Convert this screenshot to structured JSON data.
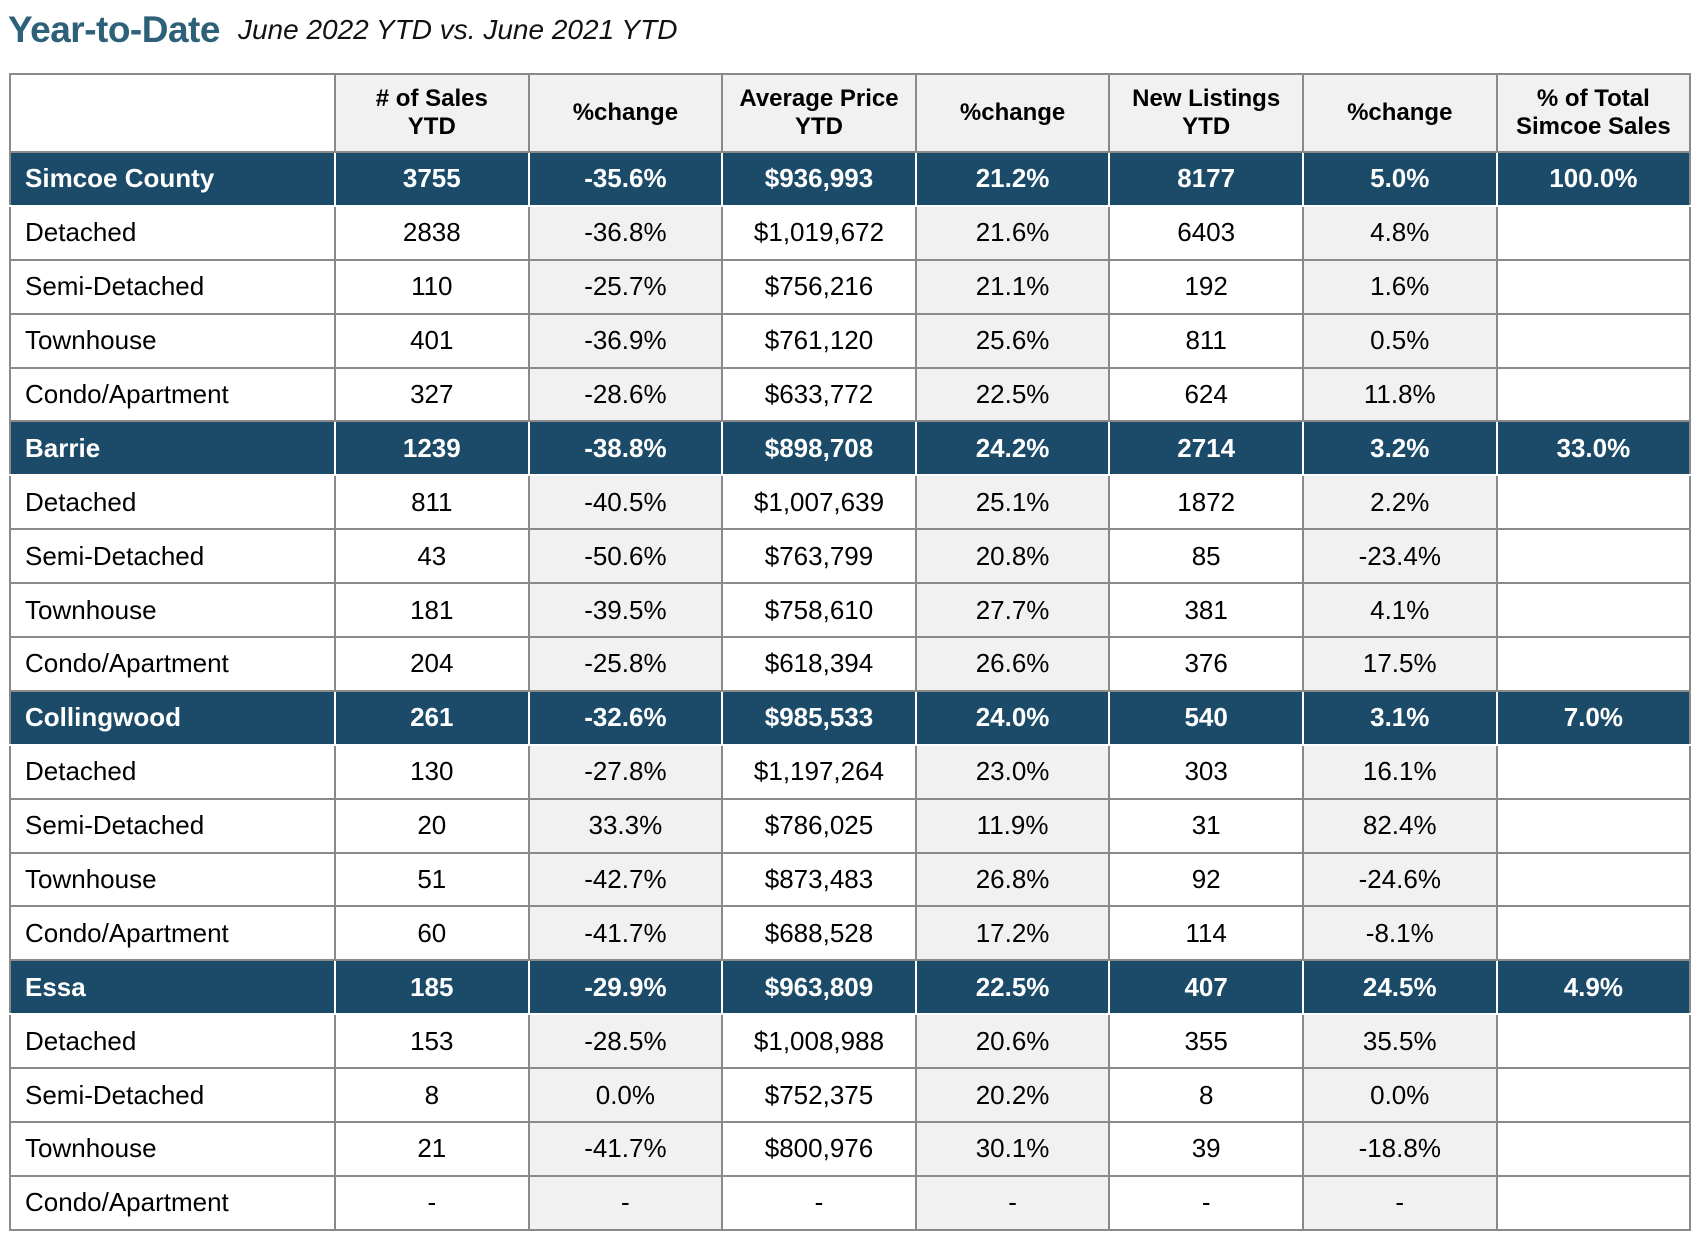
{
  "title": {
    "main": "Year-to-Date",
    "subtitle": "June 2022 YTD vs. June 2021 YTD"
  },
  "table": {
    "headers": [
      "",
      "# of Sales\nYTD",
      "%change",
      "Average Price\nYTD",
      "%change",
      "New Listings\nYTD",
      "%change",
      "% of Total\nSimcoe Sales"
    ],
    "groups": [
      {
        "summary": [
          "Simcoe County",
          "3755",
          "-35.6%",
          "$936,993",
          "21.2%",
          "8177",
          "5.0%",
          "100.0%"
        ],
        "rows": [
          [
            "Detached",
            "2838",
            "-36.8%",
            "$1,019,672",
            "21.6%",
            "6403",
            "4.8%",
            ""
          ],
          [
            "Semi-Detached",
            "110",
            "-25.7%",
            "$756,216",
            "21.1%",
            "192",
            "1.6%",
            ""
          ],
          [
            "Townhouse",
            "401",
            "-36.9%",
            "$761,120",
            "25.6%",
            "811",
            "0.5%",
            ""
          ],
          [
            "Condo/Apartment",
            "327",
            "-28.6%",
            "$633,772",
            "22.5%",
            "624",
            "11.8%",
            ""
          ]
        ]
      },
      {
        "summary": [
          "Barrie",
          "1239",
          "-38.8%",
          "$898,708",
          "24.2%",
          "2714",
          "3.2%",
          "33.0%"
        ],
        "rows": [
          [
            "Detached",
            "811",
            "-40.5%",
            "$1,007,639",
            "25.1%",
            "1872",
            "2.2%",
            ""
          ],
          [
            "Semi-Detached",
            "43",
            "-50.6%",
            "$763,799",
            "20.8%",
            "85",
            "-23.4%",
            ""
          ],
          [
            "Townhouse",
            "181",
            "-39.5%",
            "$758,610",
            "27.7%",
            "381",
            "4.1%",
            ""
          ],
          [
            "Condo/Apartment",
            "204",
            "-25.8%",
            "$618,394",
            "26.6%",
            "376",
            "17.5%",
            ""
          ]
        ]
      },
      {
        "summary": [
          "Collingwood",
          "261",
          "-32.6%",
          "$985,533",
          "24.0%",
          "540",
          "3.1%",
          "7.0%"
        ],
        "rows": [
          [
            "Detached",
            "130",
            "-27.8%",
            "$1,197,264",
            "23.0%",
            "303",
            "16.1%",
            ""
          ],
          [
            "Semi-Detached",
            "20",
            "33.3%",
            "$786,025",
            "11.9%",
            "31",
            "82.4%",
            ""
          ],
          [
            "Townhouse",
            "51",
            "-42.7%",
            "$873,483",
            "26.8%",
            "92",
            "-24.6%",
            ""
          ],
          [
            "Condo/Apartment",
            "60",
            "-41.7%",
            "$688,528",
            "17.2%",
            "114",
            "-8.1%",
            ""
          ]
        ]
      },
      {
        "summary": [
          "Essa",
          "185",
          "-29.9%",
          "$963,809",
          "22.5%",
          "407",
          "24.5%",
          "4.9%"
        ],
        "rows": [
          [
            "Detached",
            "153",
            "-28.5%",
            "$1,008,988",
            "20.6%",
            "355",
            "35.5%",
            ""
          ],
          [
            "Semi-Detached",
            "8",
            "0.0%",
            "$752,375",
            "20.2%",
            "8",
            "0.0%",
            ""
          ],
          [
            "Townhouse",
            "21",
            "-41.7%",
            "$800,976",
            "30.1%",
            "39",
            "-18.8%",
            ""
          ],
          [
            "Condo/Apartment",
            "-",
            "-",
            "-",
            "-",
            "-",
            "-",
            ""
          ]
        ]
      }
    ]
  },
  "colors": {
    "title": "#2d6179",
    "group_row_bg": "#1b4b68",
    "group_row_text": "#ffffff",
    "shaded_cell_bg": "#f1f1f1",
    "border": "#8a8a8a"
  }
}
